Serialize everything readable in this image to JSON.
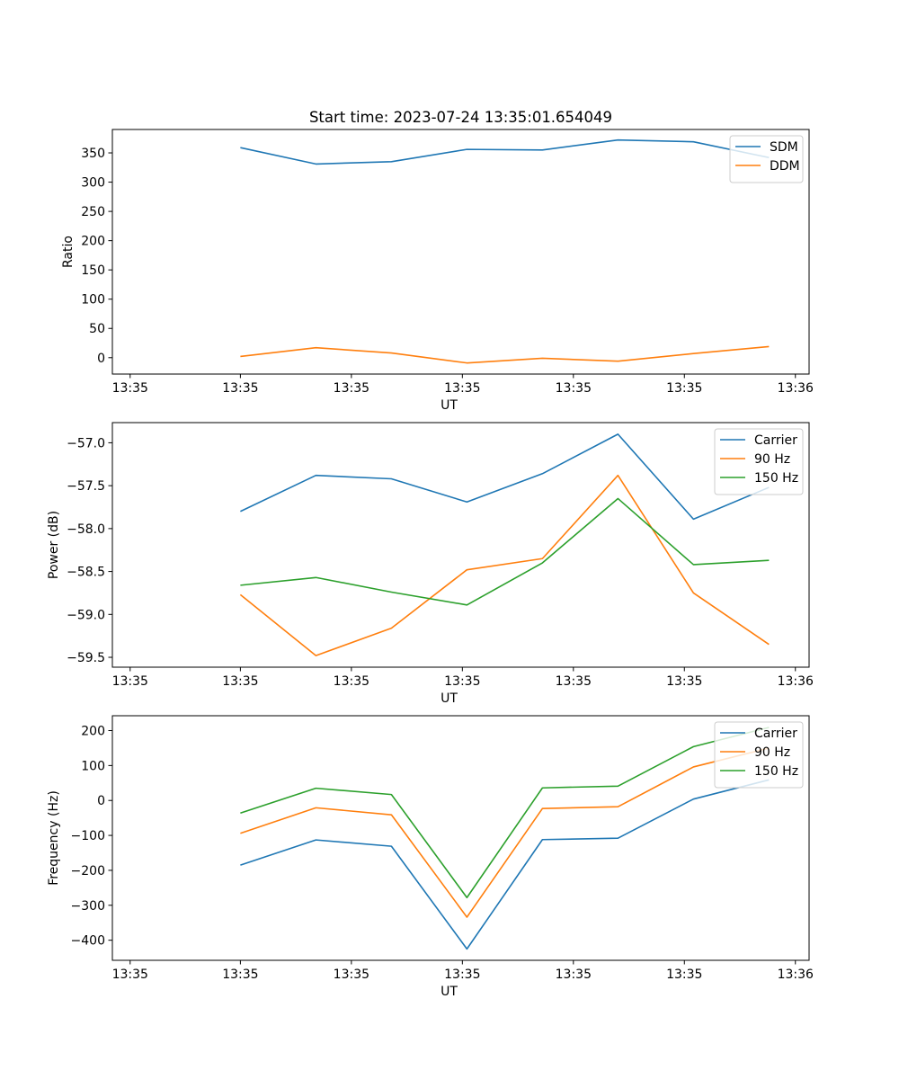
{
  "title": "Start time: 2023-07-24 13:35:01.654049",
  "colors": {
    "blue": "#1f77b4",
    "orange": "#ff7f0e",
    "green": "#2ca02c"
  },
  "chart_data": [
    {
      "type": "line",
      "name": "ratio",
      "title": "Start time: 2023-07-24 13:35:01.654049",
      "xlabel": "UT",
      "ylabel": "Ratio",
      "x": [
        1,
        2,
        3,
        4,
        5,
        6,
        7,
        8
      ],
      "xlim": [
        -0.6953,
        8.5316
      ],
      "xticks": [
        {
          "value": -0.46,
          "label": "13:35"
        },
        {
          "value": 1.0,
          "label": "13:35"
        },
        {
          "value": 2.47,
          "label": "13:35"
        },
        {
          "value": 3.94,
          "label": "13:35"
        },
        {
          "value": 5.41,
          "label": "13:35"
        },
        {
          "value": 6.88,
          "label": "13:35"
        },
        {
          "value": 8.35,
          "label": "13:36"
        }
      ],
      "ylim": [
        -28,
        390
      ],
      "yticks": [
        0,
        50,
        100,
        150,
        200,
        250,
        300,
        350
      ],
      "legend": "top-right",
      "series": [
        {
          "name": "SDM",
          "color": "#1f77b4",
          "values": [
            359,
            331,
            335,
            356,
            355,
            372,
            369,
            342
          ]
        },
        {
          "name": "DDM",
          "color": "#ff7f0e",
          "values": [
            2,
            17,
            8,
            -9,
            -1,
            -6,
            7,
            19
          ]
        }
      ]
    },
    {
      "type": "line",
      "name": "power",
      "xlabel": "UT",
      "ylabel": "Power (dB)",
      "x": [
        1,
        2,
        3,
        4,
        5,
        6,
        7,
        8
      ],
      "xlim": [
        -0.6953,
        8.5316
      ],
      "xticks": [
        {
          "value": -0.46,
          "label": "13:35"
        },
        {
          "value": 1.0,
          "label": "13:35"
        },
        {
          "value": 2.47,
          "label": "13:35"
        },
        {
          "value": 3.94,
          "label": "13:35"
        },
        {
          "value": 5.41,
          "label": "13:35"
        },
        {
          "value": 6.88,
          "label": "13:35"
        },
        {
          "value": 8.35,
          "label": "13:36"
        }
      ],
      "ylim": [
        -59.615,
        -56.765
      ],
      "yticks": [
        {
          "value": -59.5,
          "label": "−59.5"
        },
        {
          "value": -59.0,
          "label": "−59.0"
        },
        {
          "value": -58.5,
          "label": "−58.5"
        },
        {
          "value": -58.0,
          "label": "−58.0"
        },
        {
          "value": -57.5,
          "label": "−57.5"
        },
        {
          "value": -57.0,
          "label": "−57.0"
        }
      ],
      "legend": "top-right",
      "series": [
        {
          "name": "Carrier",
          "color": "#1f77b4",
          "values": [
            -57.8,
            -57.38,
            -57.42,
            -57.69,
            -57.36,
            -56.9,
            -57.89,
            -57.52
          ]
        },
        {
          "name": "90 Hz",
          "color": "#ff7f0e",
          "values": [
            -58.77,
            -59.48,
            -59.16,
            -58.48,
            -58.35,
            -57.38,
            -58.75,
            -59.35
          ]
        },
        {
          "name": "150 Hz",
          "color": "#2ca02c",
          "values": [
            -58.66,
            -58.57,
            -58.74,
            -58.89,
            -58.4,
            -57.65,
            -58.42,
            -58.37
          ]
        }
      ]
    },
    {
      "type": "line",
      "name": "frequency",
      "xlabel": "UT",
      "ylabel": "Frequency (Hz)",
      "x": [
        1,
        2,
        3,
        4,
        5,
        6,
        7,
        8
      ],
      "xlim": [
        -0.6953,
        8.5316
      ],
      "xticks": [
        {
          "value": -0.46,
          "label": "13:35"
        },
        {
          "value": 1.0,
          "label": "13:35"
        },
        {
          "value": 2.47,
          "label": "13:35"
        },
        {
          "value": 3.94,
          "label": "13:35"
        },
        {
          "value": 5.41,
          "label": "13:35"
        },
        {
          "value": 6.88,
          "label": "13:35"
        },
        {
          "value": 8.35,
          "label": "13:36"
        }
      ],
      "ylim": [
        -457.5,
        242.5
      ],
      "yticks": [
        {
          "value": -400,
          "label": "−400"
        },
        {
          "value": -300,
          "label": "−300"
        },
        {
          "value": -200,
          "label": "−200"
        },
        {
          "value": -100,
          "label": "−100"
        },
        {
          "value": 0,
          "label": "0"
        },
        {
          "value": 100,
          "label": "100"
        },
        {
          "value": 200,
          "label": "200"
        }
      ],
      "legend": "top-right",
      "series": [
        {
          "name": "Carrier",
          "color": "#1f77b4",
          "values": [
            -185,
            -113,
            -131,
            -425,
            -112,
            -108,
            4,
            59
          ]
        },
        {
          "name": "90 Hz",
          "color": "#ff7f0e",
          "values": [
            -94,
            -21,
            -41,
            -334,
            -23,
            -18,
            96,
            150
          ]
        },
        {
          "name": "150 Hz",
          "color": "#2ca02c",
          "values": [
            -36,
            35,
            17,
            -278,
            36,
            41,
            154,
            209
          ]
        }
      ]
    }
  ]
}
